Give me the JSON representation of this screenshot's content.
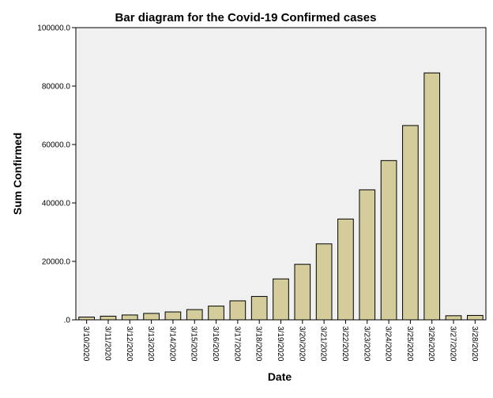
{
  "chart_data": {
    "type": "bar",
    "title": "Bar diagram for the Covid-19 Confirmed cases",
    "xlabel": "Date",
    "ylabel": "Sum Confirmed",
    "ylim": [
      0,
      100000
    ],
    "yticks": [
      0,
      20000,
      40000,
      60000,
      80000,
      100000
    ],
    "ytick_labels": [
      ".0",
      "20000.0",
      "40000.0",
      "60000.0",
      "80000.0",
      "100000.0"
    ],
    "grid": false,
    "categories": [
      "3/10/2020",
      "3/11/2020",
      "3/12/2020",
      "3/13/2020",
      "3/14/2020",
      "3/15/2020",
      "3/16/2020",
      "3/17/2020",
      "3/18/2020",
      "3/19/2020",
      "3/20/2020",
      "3/21/2020",
      "3/22/2020",
      "3/23/2020",
      "3/24/2020",
      "3/25/2020",
      "3/26/2020",
      "3/27/2020",
      "3/28/2020"
    ],
    "values": [
      950,
      1250,
      1650,
      2200,
      2700,
      3500,
      4700,
      6500,
      8000,
      14000,
      19000,
      26000,
      34500,
      44500,
      54500,
      66500,
      84500,
      1400,
      1500
    ],
    "colors": {
      "bar_fill": "#d4cd9b",
      "bar_stroke": "#000000",
      "plot_background": "#f0f0f0"
    }
  }
}
